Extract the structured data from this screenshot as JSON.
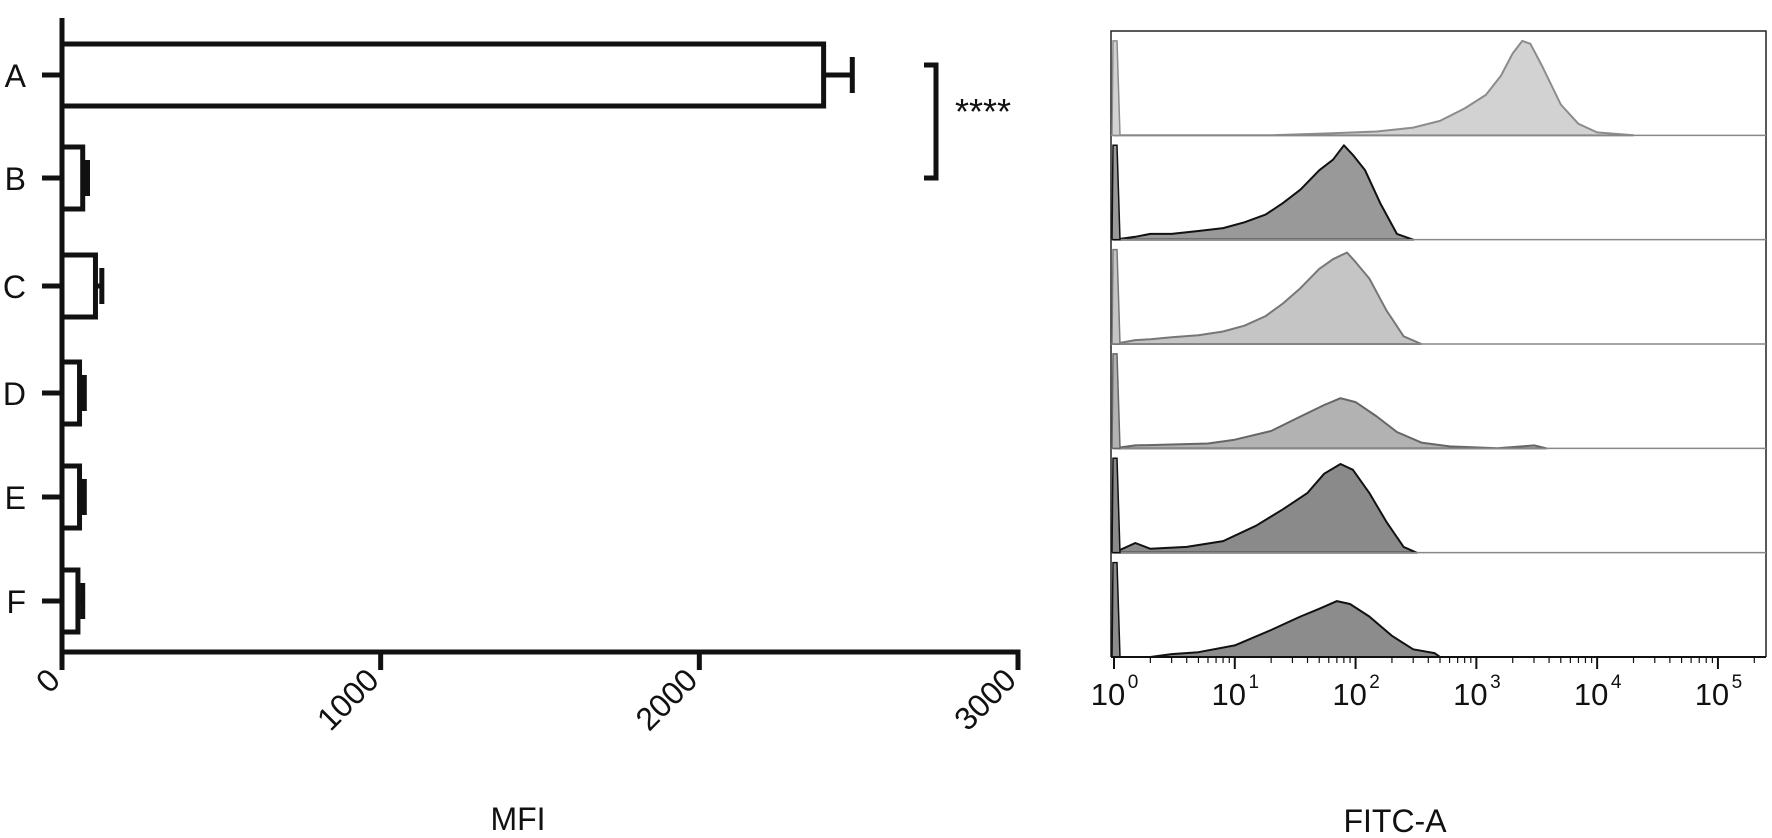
{
  "chart_data": [
    {
      "type": "bar",
      "orientation": "horizontal",
      "categories": [
        "A",
        "B",
        "C",
        "D",
        "E",
        "F"
      ],
      "values": [
        2390,
        65,
        105,
        55,
        55,
        50
      ],
      "errors": [
        90,
        15,
        20,
        15,
        15,
        15
      ],
      "xlabel": "MFI",
      "ylabel": "",
      "xlim": [
        0,
        3000
      ],
      "xticks": [
        "0",
        "1000",
        "2000",
        "3000"
      ],
      "xtick_values": [
        0,
        1000,
        2000,
        3000
      ],
      "fill": "#ffffff",
      "stroke": "#111111",
      "grid": false,
      "significance": {
        "label": "****",
        "from": "A",
        "to": "B"
      }
    },
    {
      "type": "area",
      "subtype": "stacked-histogram-overlay",
      "xlabel": "FITC-A",
      "xscale": "log",
      "xlim": [
        1,
        250000
      ],
      "xticks": [
        "10",
        "10",
        "10",
        "10",
        "10",
        "10"
      ],
      "xtick_exponents": [
        "0",
        "1",
        "2",
        "3",
        "4",
        "5"
      ],
      "xtick_values": [
        1,
        10,
        100,
        1000,
        10000,
        100000
      ],
      "grid": false,
      "tracks": [
        {
          "color": "#d2d2d2",
          "stroke": "#8c8c8c",
          "peak_x": 2500,
          "x": [
            1,
            20,
            60,
            150,
            300,
            500,
            800,
            1200,
            1600,
            2000,
            2400,
            2800,
            3500,
            5000,
            7000,
            10000,
            20000
          ],
          "y": [
            0,
            0,
            0.02,
            0.04,
            0.08,
            0.15,
            0.28,
            0.42,
            0.62,
            0.85,
            0.98,
            0.95,
            0.72,
            0.32,
            0.12,
            0.03,
            0
          ]
        },
        {
          "color": "#999999",
          "stroke": "#111111",
          "peak_x": 80,
          "x": [
            1,
            1.5,
            2,
            3,
            5,
            8,
            12,
            18,
            25,
            35,
            50,
            65,
            80,
            95,
            120,
            160,
            220,
            300
          ],
          "y": [
            0,
            0.03,
            0.06,
            0.06,
            0.09,
            0.12,
            0.18,
            0.26,
            0.38,
            0.52,
            0.72,
            0.83,
            0.98,
            0.88,
            0.72,
            0.38,
            0.06,
            0
          ]
        },
        {
          "color": "#c5c5c5",
          "stroke": "#777777",
          "peak_x": 85,
          "x": [
            1,
            1.5,
            2,
            3,
            5,
            8,
            12,
            18,
            25,
            35,
            50,
            65,
            85,
            100,
            130,
            180,
            250,
            350
          ],
          "y": [
            0,
            0.04,
            0.05,
            0.07,
            0.09,
            0.13,
            0.19,
            0.29,
            0.42,
            0.58,
            0.78,
            0.88,
            0.95,
            0.85,
            0.68,
            0.35,
            0.08,
            0
          ]
        },
        {
          "color": "#b2b2b2",
          "stroke": "#666666",
          "peak_x": 75,
          "x": [
            1,
            1.5,
            3,
            6,
            10,
            20,
            35,
            55,
            75,
            100,
            150,
            220,
            350,
            600,
            1500,
            3000,
            3800
          ],
          "y": [
            0,
            0.03,
            0.04,
            0.05,
            0.09,
            0.18,
            0.33,
            0.45,
            0.52,
            0.48,
            0.33,
            0.17,
            0.06,
            0.02,
            0,
            0.03,
            0
          ]
        },
        {
          "color": "#8a8a8a",
          "stroke": "#111111",
          "peak_x": 75,
          "x": [
            1,
            1.5,
            2,
            4,
            8,
            15,
            25,
            40,
            55,
            75,
            95,
            130,
            180,
            250,
            320
          ],
          "y": [
            0,
            0.1,
            0.04,
            0.06,
            0.12,
            0.28,
            0.45,
            0.62,
            0.82,
            0.92,
            0.86,
            0.62,
            0.32,
            0.06,
            0
          ]
        },
        {
          "color": "#8c8c8c",
          "stroke": "#111111",
          "peak_x": 80,
          "x": [
            1,
            2,
            3,
            5,
            10,
            20,
            35,
            50,
            70,
            90,
            130,
            200,
            300,
            450,
            500
          ],
          "y": [
            0,
            0,
            0.03,
            0.05,
            0.12,
            0.28,
            0.42,
            0.5,
            0.58,
            0.55,
            0.42,
            0.22,
            0.08,
            0.04,
            0
          ]
        }
      ]
    }
  ]
}
